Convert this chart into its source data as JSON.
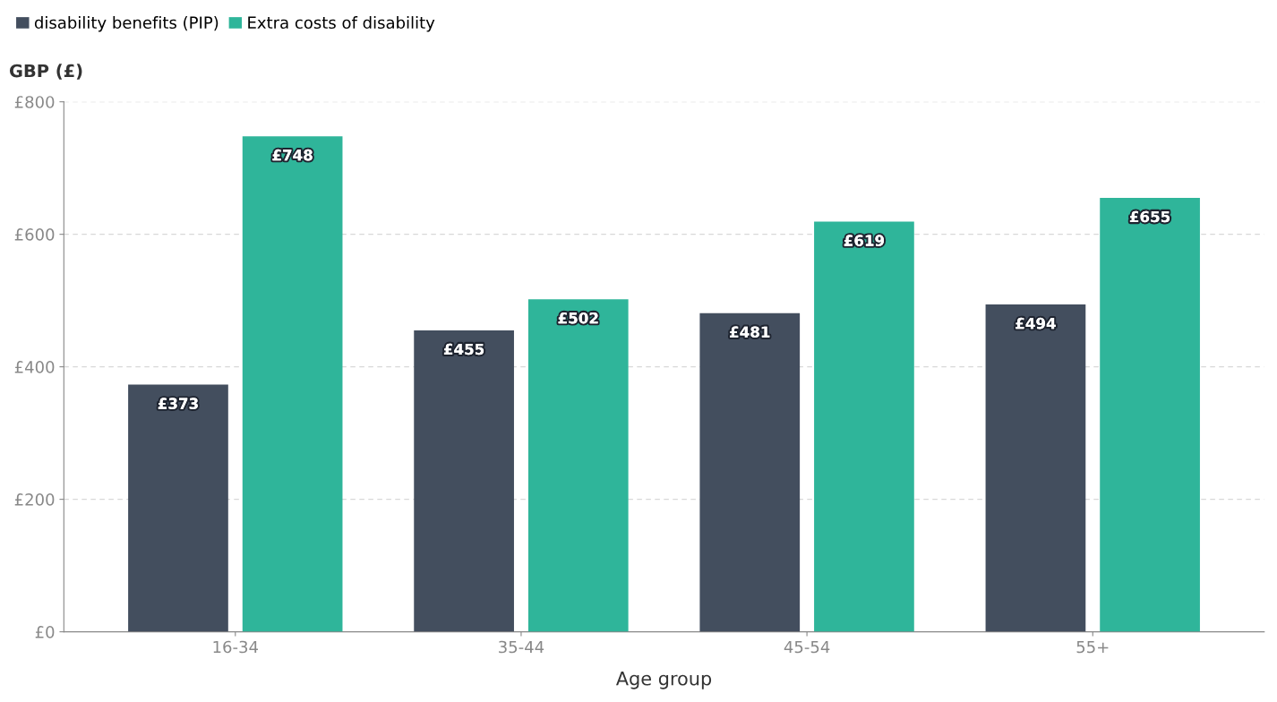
{
  "chart_data": {
    "type": "bar",
    "xlabel": "Age group",
    "ylabel": "GBP (£)",
    "categories": [
      "16-34",
      "35-44",
      "45-54",
      "55+"
    ],
    "series": [
      {
        "name": "disability benefits (PIP)",
        "color": "#434e5e",
        "values": [
          373,
          455,
          481,
          494
        ],
        "value_labels": [
          "£373",
          "£455",
          "£481",
          "£494"
        ]
      },
      {
        "name": "Extra costs of disability",
        "color": "#2fb59a",
        "values": [
          748,
          502,
          619,
          655
        ],
        "value_labels": [
          "£748",
          "£502",
          "£619",
          "£655"
        ]
      }
    ],
    "ylim": [
      0,
      800
    ],
    "yticks": [
      {
        "value": 0,
        "label": "£0"
      },
      {
        "value": 200,
        "label": "£200"
      },
      {
        "value": 400,
        "label": "£400"
      },
      {
        "value": 600,
        "label": "£600"
      },
      {
        "value": 800,
        "label": "£800"
      }
    ],
    "grid": "y",
    "legend": "top left"
  }
}
